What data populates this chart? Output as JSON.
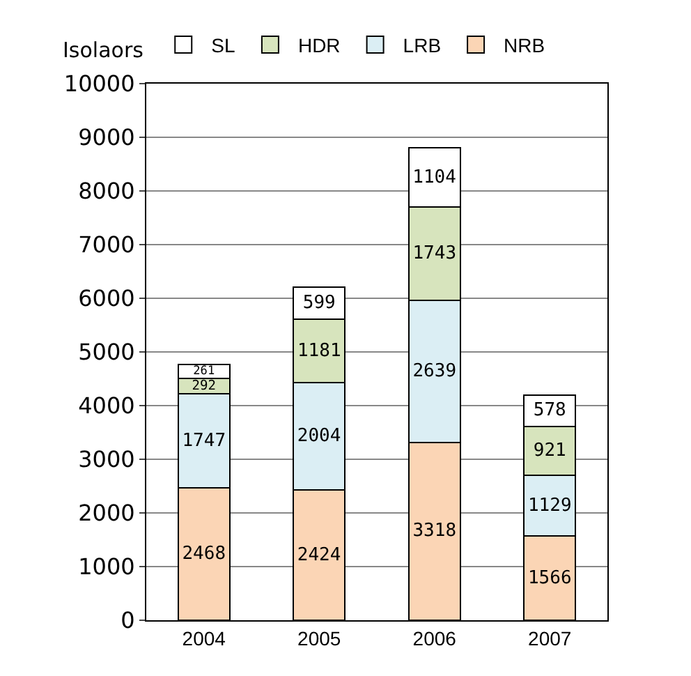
{
  "chart_data": {
    "type": "bar",
    "stacked": true,
    "ylabel": "Isolaors",
    "categories": [
      "2004",
      "2005",
      "2006",
      "2007"
    ],
    "series": [
      {
        "name": "NRB",
        "color": "#fbd5b5",
        "values": [
          2468,
          2424,
          3318,
          1566
        ]
      },
      {
        "name": "LRB",
        "color": "#dbeef4",
        "values": [
          1747,
          2004,
          2639,
          1129
        ]
      },
      {
        "name": "HDR",
        "color": "#d7e4bd",
        "values": [
          292,
          1181,
          1743,
          921
        ]
      },
      {
        "name": "SL",
        "color": "#ffffff",
        "values": [
          261,
          599,
          1104,
          578
        ]
      }
    ],
    "ylim": [
      0,
      10000
    ],
    "yticks": [
      0,
      1000,
      2000,
      3000,
      4000,
      5000,
      6000,
      7000,
      8000,
      9000,
      10000
    ],
    "grid": "y",
    "legend": "top",
    "data_labels": true
  }
}
